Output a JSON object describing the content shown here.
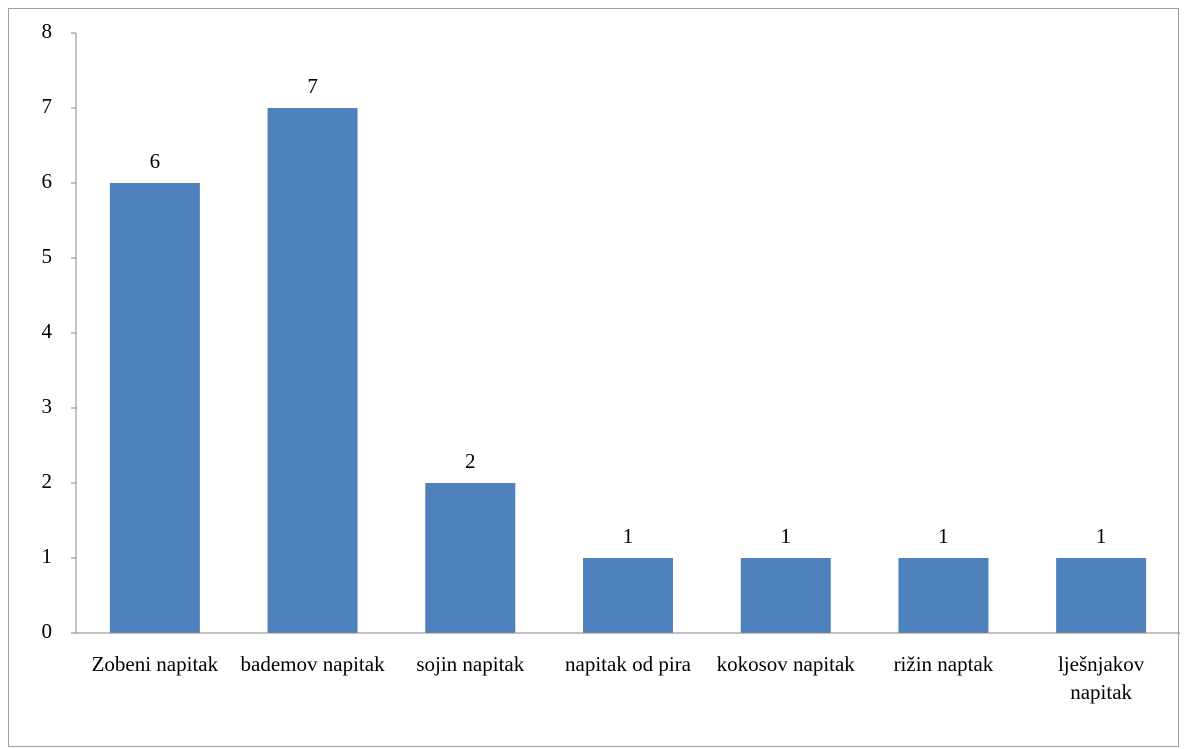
{
  "chart_data": {
    "type": "bar",
    "categories": [
      "Zobeni napitak",
      "bademov napitak",
      "sojin napitak",
      "napitak od pira",
      "kokosov napitak",
      "rižin naptak",
      "lješnjakov napitak"
    ],
    "values": [
      6,
      7,
      2,
      1,
      1,
      1,
      1
    ],
    "color": "#4f81bd",
    "ylim": [
      0,
      8
    ],
    "yticks": [
      0,
      1,
      2,
      3,
      4,
      5,
      6,
      7,
      8
    ],
    "grid": false
  }
}
